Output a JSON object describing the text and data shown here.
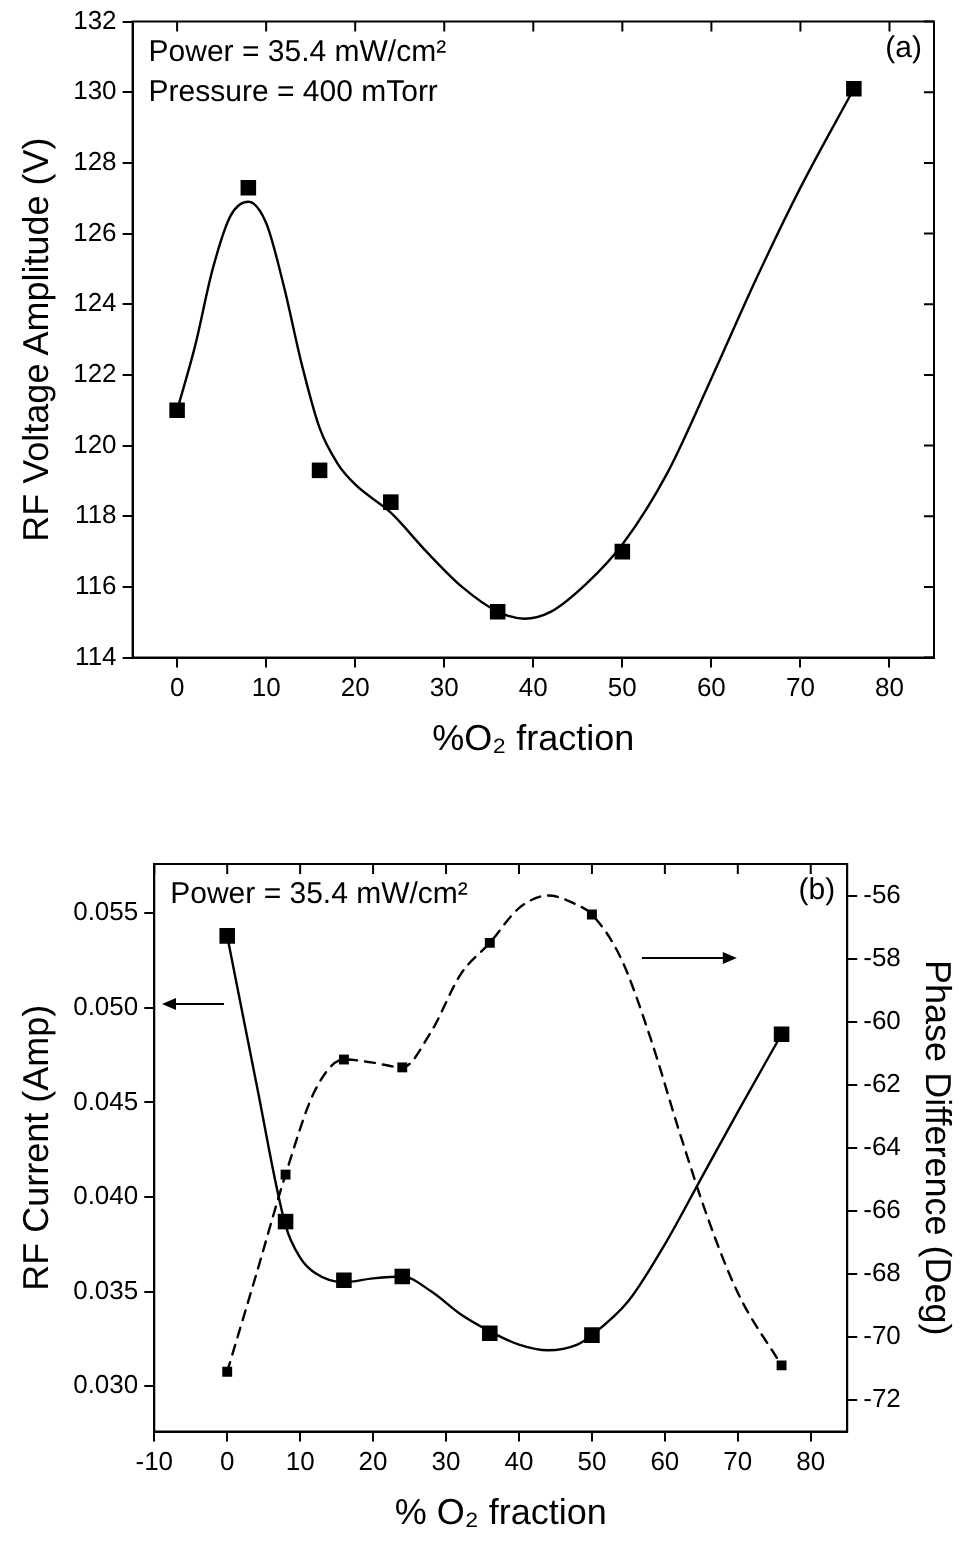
{
  "chart_data": [
    {
      "type": "scatter",
      "xlabel": "%O₂ fraction",
      "ylabel": "RF Voltage Amplitude (V)",
      "annotations": [
        "Power = 35.4 mW/cm²",
        "Pressure = 400 mTorr",
        "(a)"
      ],
      "xlim": [
        -5,
        85
      ],
      "xticks": [
        0,
        10,
        20,
        30,
        40,
        50,
        60,
        70,
        80
      ],
      "ylim": [
        114,
        132
      ],
      "yticks": [
        114,
        116,
        118,
        120,
        122,
        124,
        126,
        128,
        130,
        132
      ],
      "grid": false,
      "legend": false,
      "series": [
        {
          "type": "line",
          "color": "#000000",
          "marker": "none",
          "line_style": "solid",
          "x": [
            0,
            2,
            4,
            6,
            8,
            10,
            12,
            14,
            16,
            18,
            20,
            24,
            28,
            32,
            36,
            39,
            42,
            46,
            50,
            55,
            60,
            65,
            70,
            76
          ],
          "values": [
            121.0,
            122.8,
            125.0,
            126.5,
            126.9,
            126.3,
            124.5,
            122.3,
            120.5,
            119.5,
            118.9,
            118.1,
            117.0,
            116.0,
            115.3,
            115.1,
            115.3,
            116.1,
            117.2,
            119.2,
            121.9,
            124.7,
            127.3,
            130.1
          ]
        },
        {
          "color": "#000000",
          "marker": "square",
          "x": [
            0,
            8,
            16,
            24,
            36,
            50,
            76
          ],
          "values": [
            121.0,
            127.3,
            119.3,
            118.4,
            115.3,
            117.0,
            130.1
          ]
        }
      ]
    },
    {
      "type": "scatter",
      "xlabel": "% O₂ fraction",
      "ylabel": "RF Current (Amp)",
      "y2label": "Phase Difference (Deg)",
      "annotations": [
        "Power = 35.4 mW/cm²",
        "(b)"
      ],
      "xlim": [
        -10,
        85
      ],
      "xticks": [
        -10,
        0,
        10,
        20,
        30,
        40,
        50,
        60,
        70,
        80
      ],
      "ylim": [
        0.0276,
        0.0576
      ],
      "yticks": [
        {
          "value": 0.03,
          "label": "0.030"
        },
        0.035,
        {
          "value": 0.04,
          "label": "0.040"
        },
        0.045,
        {
          "value": 0.05,
          "label": "0.050"
        },
        0.055
      ],
      "y2lim": [
        -73,
        -55
      ],
      "y2ticks": [
        -72,
        -70,
        -68,
        -66,
        -64,
        -62,
        -60,
        -58,
        -56
      ],
      "grid": false,
      "legend": false,
      "series": [
        {
          "type": "line",
          "color": "#000000",
          "marker": "none",
          "line_style": "solid",
          "x": [
            0,
            4,
            8,
            10,
            12,
            16,
            20,
            24,
            28,
            32,
            36,
            40,
            44,
            48,
            50,
            55,
            60,
            65,
            70,
            76
          ],
          "values": [
            0.0538,
            0.046,
            0.0385,
            0.0368,
            0.036,
            0.0355,
            0.0357,
            0.0358,
            0.035,
            0.0338,
            0.0329,
            0.0322,
            0.0319,
            0.0322,
            0.0327,
            0.0345,
            0.0375,
            0.041,
            0.0445,
            0.0486
          ]
        },
        {
          "color": "#000000",
          "marker": "square",
          "x": [
            0,
            8,
            16,
            24,
            36,
            50,
            76
          ],
          "values": [
            0.0538,
            0.0387,
            0.0356,
            0.0358,
            0.0328,
            0.0327,
            0.0486
          ]
        },
        {
          "type": "line",
          "axis": "y2",
          "color": "#000000",
          "marker": "none",
          "line_style": "dashed",
          "x": [
            0,
            4,
            8,
            12,
            16,
            20,
            24,
            28,
            32,
            36,
            40,
            44,
            48,
            50,
            54,
            58,
            62,
            66,
            70,
            76
          ],
          "values": [
            -71.1,
            -68.0,
            -64.85,
            -62.2,
            -61.2,
            -61.3,
            -61.45,
            -60.3,
            -58.5,
            -57.5,
            -56.4,
            -56.0,
            -56.3,
            -56.6,
            -58.0,
            -60.5,
            -63.5,
            -66.3,
            -68.6,
            -70.9
          ]
        },
        {
          "axis": "y2",
          "color": "#000000",
          "marker": "square",
          "x": [
            0,
            8,
            16,
            24,
            36,
            50,
            76
          ],
          "values": [
            -71.1,
            -64.85,
            -61.2,
            -61.45,
            -57.5,
            -56.6,
            -70.9
          ]
        }
      ]
    }
  ]
}
